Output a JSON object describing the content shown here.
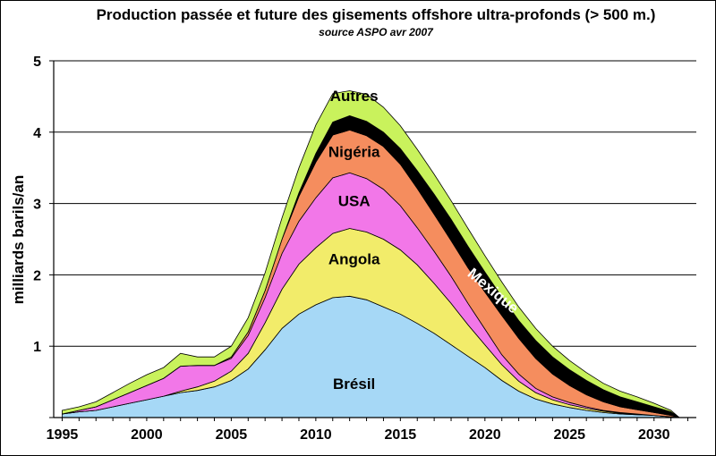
{
  "chart_data": {
    "type": "area",
    "stacked": true,
    "title": "Production passée et future des gisements offshore ultra-profonds (> 500 m.)",
    "subtitle": "source ASPO avr 2007",
    "xlabel": "",
    "ylabel": "milliards barils/an",
    "xlim": [
      1994.5,
      2032.5
    ],
    "ylim": [
      0,
      5
    ],
    "x_ticks": [
      1995,
      2000,
      2005,
      2010,
      2015,
      2020,
      2025,
      2030
    ],
    "y_ticks": [
      1,
      2,
      3,
      4,
      5
    ],
    "grid": "horizontal",
    "x": [
      1995,
      1996,
      1997,
      1998,
      1999,
      2000,
      2001,
      2002,
      2003,
      2004,
      2005,
      2006,
      2007,
      2008,
      2009,
      2010,
      2011,
      2012,
      2013,
      2014,
      2015,
      2016,
      2017,
      2018,
      2019,
      2020,
      2021,
      2022,
      2023,
      2024,
      2025,
      2026,
      2027,
      2028,
      2029,
      2030,
      2031,
      2031.5
    ],
    "series": [
      {
        "name": "Brésil",
        "color": "#a6d8f6",
        "values": [
          0.05,
          0.08,
          0.1,
          0.15,
          0.2,
          0.25,
          0.3,
          0.35,
          0.38,
          0.43,
          0.52,
          0.68,
          0.95,
          1.25,
          1.45,
          1.58,
          1.68,
          1.7,
          1.65,
          1.55,
          1.45,
          1.32,
          1.18,
          1.02,
          0.86,
          0.7,
          0.52,
          0.37,
          0.26,
          0.19,
          0.14,
          0.1,
          0.07,
          0.05,
          0.04,
          0.03,
          0.01,
          0.0
        ]
      },
      {
        "name": "Angola",
        "color": "#f2ec6a",
        "values": [
          0.0,
          0.0,
          0.0,
          0.0,
          0.0,
          0.0,
          0.0,
          0.02,
          0.05,
          0.08,
          0.13,
          0.22,
          0.38,
          0.55,
          0.7,
          0.8,
          0.9,
          0.95,
          0.95,
          0.95,
          0.9,
          0.82,
          0.7,
          0.58,
          0.44,
          0.32,
          0.22,
          0.14,
          0.09,
          0.06,
          0.04,
          0.03,
          0.02,
          0.01,
          0.01,
          0.0,
          0.0,
          0.0
        ]
      },
      {
        "name": "USA",
        "color": "#f277e8",
        "values": [
          0.0,
          0.02,
          0.05,
          0.1,
          0.15,
          0.2,
          0.25,
          0.35,
          0.3,
          0.22,
          0.18,
          0.25,
          0.35,
          0.5,
          0.6,
          0.7,
          0.78,
          0.78,
          0.75,
          0.7,
          0.62,
          0.52,
          0.45,
          0.38,
          0.3,
          0.22,
          0.14,
          0.1,
          0.06,
          0.04,
          0.03,
          0.02,
          0.01,
          0.01,
          0.0,
          0.0,
          0.0,
          0.0
        ]
      },
      {
        "name": "Nigéria",
        "color": "#f58d5e",
        "values": [
          0.0,
          0.0,
          0.0,
          0.0,
          0.0,
          0.0,
          0.0,
          0.0,
          0.0,
          0.0,
          0.02,
          0.05,
          0.1,
          0.2,
          0.35,
          0.5,
          0.6,
          0.6,
          0.6,
          0.6,
          0.58,
          0.55,
          0.52,
          0.5,
          0.5,
          0.52,
          0.55,
          0.5,
          0.42,
          0.32,
          0.24,
          0.17,
          0.12,
          0.08,
          0.06,
          0.04,
          0.02,
          0.0
        ]
      },
      {
        "name": "Mexique",
        "color": "#000000",
        "values": [
          0.0,
          0.0,
          0.0,
          0.0,
          0.0,
          0.0,
          0.0,
          0.0,
          0.0,
          0.0,
          0.0,
          0.0,
          0.0,
          0.0,
          0.05,
          0.12,
          0.18,
          0.2,
          0.2,
          0.2,
          0.22,
          0.25,
          0.28,
          0.3,
          0.3,
          0.28,
          0.26,
          0.25,
          0.25,
          0.24,
          0.22,
          0.2,
          0.17,
          0.14,
          0.11,
          0.08,
          0.05,
          0.0
        ]
      },
      {
        "name": "Autres",
        "color": "#c9f25c",
        "values": [
          0.05,
          0.05,
          0.07,
          0.1,
          0.13,
          0.15,
          0.15,
          0.18,
          0.12,
          0.12,
          0.15,
          0.2,
          0.25,
          0.3,
          0.35,
          0.4,
          0.4,
          0.35,
          0.38,
          0.35,
          0.32,
          0.3,
          0.28,
          0.26,
          0.25,
          0.23,
          0.21,
          0.19,
          0.17,
          0.15,
          0.13,
          0.11,
          0.09,
          0.08,
          0.07,
          0.05,
          0.02,
          0.0
        ]
      }
    ]
  }
}
